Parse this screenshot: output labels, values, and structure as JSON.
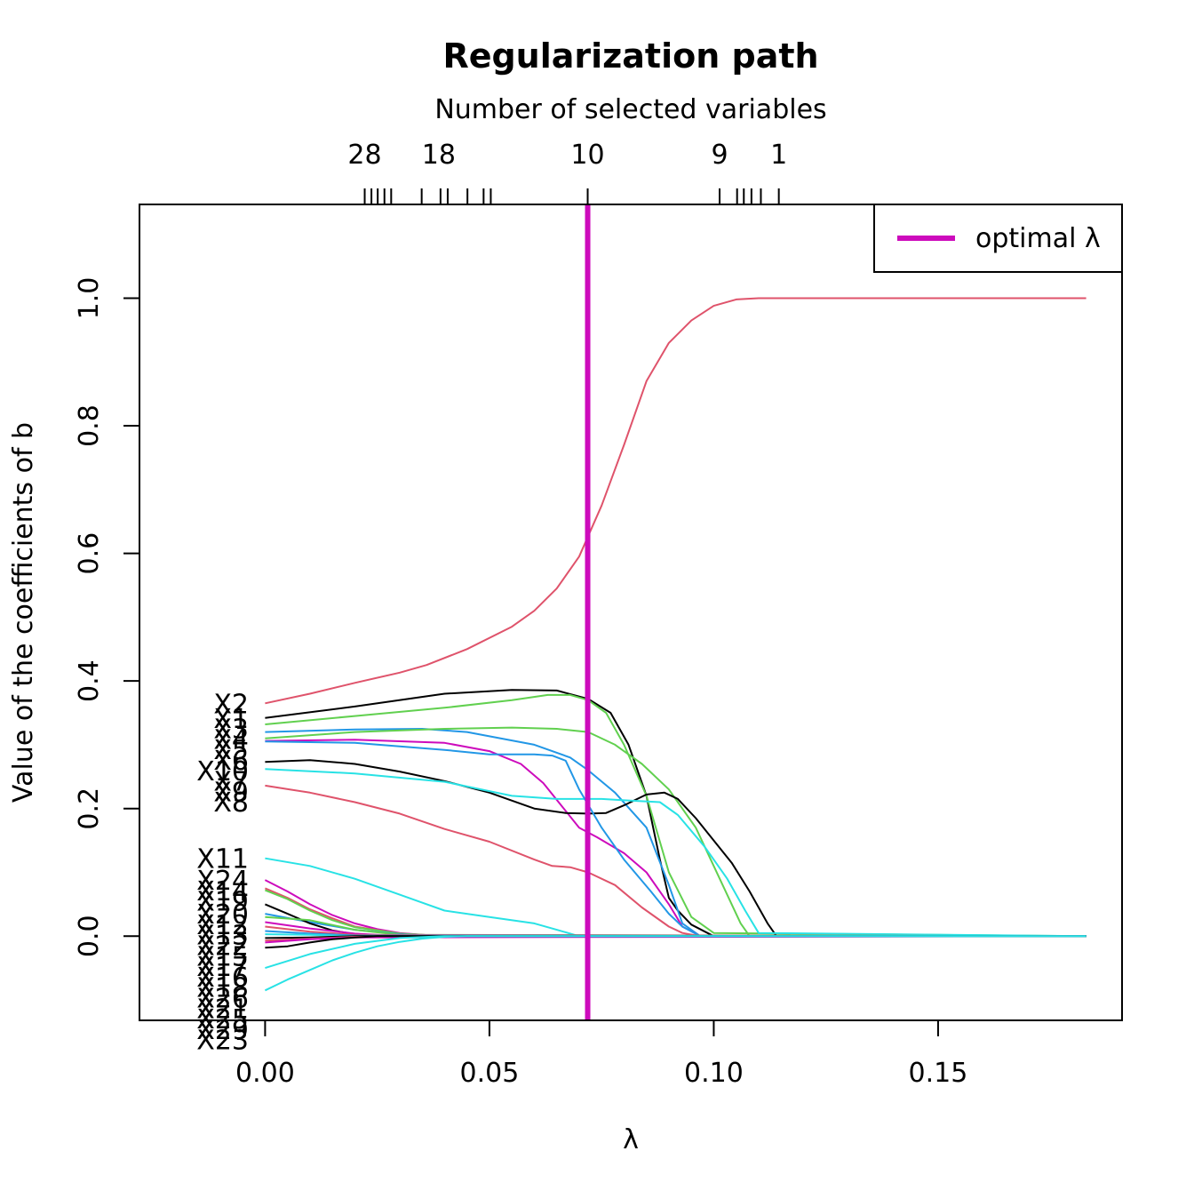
{
  "chart_data": {
    "type": "line",
    "title": "Regularization path",
    "top_axis_label": "Number of selected variables",
    "xlabel": "λ",
    "ylabel": "Value of the coefficients of b",
    "xlim": [
      -0.028,
      0.191
    ],
    "ylim": [
      -0.132,
      1.147
    ],
    "x_ticks": [
      0.0,
      0.05,
      0.1,
      0.15
    ],
    "x_tick_labels": [
      "0.00",
      "0.05",
      "0.10",
      "0.15"
    ],
    "y_ticks": [
      0.0,
      0.2,
      0.4,
      0.6,
      0.8,
      1.0
    ],
    "y_tick_labels": [
      "0.0",
      "0.2",
      "0.4",
      "0.6",
      "0.8",
      "1.0"
    ],
    "top_ticks": [
      0.0222,
      0.0237,
      0.0251,
      0.0266,
      0.0281,
      0.0349,
      0.0391,
      0.0407,
      0.0451,
      0.0487,
      0.0503,
      0.0719,
      0.1013,
      0.1052,
      0.1067,
      0.1084,
      0.1105,
      0.1145
    ],
    "top_tick_labels": [
      {
        "x": 0.0222,
        "label": "28"
      },
      {
        "x": 0.0387,
        "label": "18"
      },
      {
        "x": 0.0719,
        "label": "10"
      },
      {
        "x": 0.1013,
        "label": "9"
      },
      {
        "x": 0.1145,
        "label": "1"
      }
    ],
    "optimal_lambda": 0.0719,
    "optimal_color": "#CD0BBC",
    "legend": {
      "position": "top-right",
      "label": "optimal λ"
    },
    "series": [
      {
        "name": "X2",
        "color": "#DF536B",
        "x": [
          0,
          0.01,
          0.02,
          0.03,
          0.036,
          0.045,
          0.055,
          0.06,
          0.065,
          0.07,
          0.075,
          0.08,
          0.085,
          0.09,
          0.095,
          0.1,
          0.105,
          0.11,
          0.12,
          0.183
        ],
        "y": [
          0.365,
          0.38,
          0.397,
          0.413,
          0.425,
          0.45,
          0.485,
          0.51,
          0.545,
          0.595,
          0.675,
          0.77,
          0.87,
          0.93,
          0.965,
          0.988,
          0.998,
          1.0,
          1.0,
          1.0
        ]
      },
      {
        "name": "X1",
        "color": "#000000",
        "x": [
          0,
          0.02,
          0.04,
          0.055,
          0.065,
          0.072,
          0.077,
          0.081,
          0.085,
          0.088,
          0.09,
          0.092,
          0.095,
          0.1,
          0.183
        ],
        "y": [
          0.342,
          0.36,
          0.38,
          0.386,
          0.385,
          0.372,
          0.35,
          0.3,
          0.22,
          0.12,
          0.06,
          0.04,
          0.018,
          0.0,
          0.0
        ]
      },
      {
        "name": "X3",
        "color": "#61D04F",
        "x": [
          0,
          0.02,
          0.04,
          0.055,
          0.063,
          0.068,
          0.072,
          0.076,
          0.08,
          0.085,
          0.09,
          0.095,
          0.1,
          0.183
        ],
        "y": [
          0.332,
          0.345,
          0.358,
          0.37,
          0.378,
          0.378,
          0.37,
          0.35,
          0.3,
          0.22,
          0.1,
          0.03,
          0.005,
          0.0
        ]
      },
      {
        "name": "X4",
        "color": "#2297E6",
        "x": [
          0,
          0.02,
          0.035,
          0.045,
          0.06,
          0.068,
          0.072,
          0.078,
          0.085,
          0.09,
          0.093,
          0.097,
          0.183
        ],
        "y": [
          0.32,
          0.324,
          0.325,
          0.32,
          0.3,
          0.28,
          0.26,
          0.225,
          0.17,
          0.08,
          0.02,
          0.0,
          0.0
        ]
      },
      {
        "name": "X5",
        "color": "#CD0BBC",
        "x": [
          0,
          0.02,
          0.04,
          0.05,
          0.057,
          0.062,
          0.066,
          0.07,
          0.074,
          0.08,
          0.085,
          0.09,
          0.093,
          0.097,
          0.183
        ],
        "y": [
          0.306,
          0.308,
          0.303,
          0.29,
          0.27,
          0.24,
          0.205,
          0.17,
          0.155,
          0.13,
          0.1,
          0.05,
          0.015,
          0.0,
          0.0
        ]
      },
      {
        "name": "X6",
        "color": "#61D04F",
        "x": [
          0,
          0.02,
          0.04,
          0.055,
          0.065,
          0.072,
          0.078,
          0.084,
          0.09,
          0.096,
          0.1,
          0.104,
          0.106,
          0.108,
          0.183
        ],
        "y": [
          0.31,
          0.32,
          0.325,
          0.327,
          0.325,
          0.32,
          0.3,
          0.27,
          0.23,
          0.17,
          0.11,
          0.05,
          0.02,
          0.0,
          0.0
        ]
      },
      {
        "name": "X7",
        "color": "#000000",
        "x": [
          0,
          0.01,
          0.02,
          0.03,
          0.04,
          0.05,
          0.06,
          0.067,
          0.072,
          0.076,
          0.08,
          0.085,
          0.089,
          0.092,
          0.096,
          0.1,
          0.104,
          0.108,
          0.112,
          0.114,
          0.183
        ],
        "y": [
          0.273,
          0.276,
          0.27,
          0.258,
          0.243,
          0.225,
          0.2,
          0.193,
          0.192,
          0.193,
          0.205,
          0.222,
          0.225,
          0.215,
          0.185,
          0.15,
          0.115,
          0.07,
          0.02,
          0.0,
          0.0
        ]
      },
      {
        "name": "X8",
        "color": "#28E2E5",
        "x": [
          0,
          0.02,
          0.04,
          0.055,
          0.065,
          0.07,
          0.075,
          0.08,
          0.088,
          0.092,
          0.098,
          0.103,
          0.107,
          0.11,
          0.183
        ],
        "y": [
          0.262,
          0.255,
          0.242,
          0.22,
          0.215,
          0.215,
          0.215,
          0.213,
          0.21,
          0.19,
          0.14,
          0.09,
          0.04,
          0.005,
          0.0
        ]
      },
      {
        "name": "X9",
        "color": "#DF536B",
        "x": [
          0,
          0.01,
          0.02,
          0.03,
          0.04,
          0.05,
          0.06,
          0.064,
          0.068,
          0.072,
          0.078,
          0.084,
          0.09,
          0.093,
          0.097,
          0.183
        ],
        "y": [
          0.236,
          0.225,
          0.21,
          0.192,
          0.168,
          0.148,
          0.12,
          0.11,
          0.108,
          0.1,
          0.08,
          0.045,
          0.015,
          0.005,
          0.0,
          0.0
        ]
      },
      {
        "name": "X10",
        "color": "#2297E6",
        "x": [
          0,
          0.02,
          0.04,
          0.05,
          0.06,
          0.064,
          0.067,
          0.07,
          0.075,
          0.08,
          0.086,
          0.09,
          0.093,
          0.097,
          0.183
        ],
        "y": [
          0.305,
          0.303,
          0.292,
          0.285,
          0.285,
          0.283,
          0.275,
          0.23,
          0.17,
          0.12,
          0.07,
          0.035,
          0.015,
          0.0,
          0.0
        ]
      },
      {
        "name": "X11",
        "color": "#28E2E5",
        "x": [
          0,
          0.01,
          0.02,
          0.03,
          0.04,
          0.05,
          0.06,
          0.065,
          0.07,
          0.183
        ],
        "y": [
          0.122,
          0.11,
          0.09,
          0.065,
          0.04,
          0.03,
          0.02,
          0.01,
          0.0,
          0.0
        ]
      },
      {
        "name": "X24",
        "color": "#CD0BBC",
        "x": [
          0,
          0.005,
          0.01,
          0.015,
          0.02,
          0.025,
          0.03,
          0.035,
          0.04,
          0.045,
          0.183
        ],
        "y": [
          0.088,
          0.07,
          0.05,
          0.033,
          0.02,
          0.011,
          0.005,
          0.002,
          0.0,
          0.0,
          0.0
        ]
      },
      {
        "name": "X14",
        "color": "#DF536B",
        "x": [
          0,
          0.005,
          0.01,
          0.015,
          0.02,
          0.03,
          0.04,
          0.183
        ],
        "y": [
          0.075,
          0.06,
          0.042,
          0.028,
          0.015,
          0.004,
          0.0,
          0.0
        ]
      },
      {
        "name": "X19",
        "color": "#61D04F",
        "x": [
          0,
          0.005,
          0.01,
          0.015,
          0.02,
          0.03,
          0.04,
          0.183
        ],
        "y": [
          0.072,
          0.058,
          0.04,
          0.025,
          0.014,
          0.004,
          0.0,
          0.0
        ]
      },
      {
        "name": "X20",
        "color": "#2297E6",
        "x": [
          0,
          0.01,
          0.02,
          0.03,
          0.04,
          0.183
        ],
        "y": [
          0.035,
          0.022,
          0.01,
          0.003,
          0.0,
          0.0
        ]
      },
      {
        "name": "X12",
        "color": "#000000",
        "x": [
          0,
          0.005,
          0.01,
          0.015,
          0.02,
          0.03,
          0.183
        ],
        "y": [
          0.05,
          0.035,
          0.02,
          0.009,
          0.003,
          0.0,
          0.0
        ]
      },
      {
        "name": "X13",
        "color": "#61D04F",
        "x": [
          0,
          0.01,
          0.02,
          0.03,
          0.183
        ],
        "y": [
          0.03,
          0.025,
          0.01,
          0.002,
          0.0
        ]
      },
      {
        "name": "X22",
        "color": "#CD0BBC",
        "x": [
          0,
          0.01,
          0.02,
          0.03,
          0.183
        ],
        "y": [
          0.022,
          0.012,
          0.004,
          0.0,
          0.0
        ]
      },
      {
        "name": "X15",
        "color": "#DF536B",
        "x": [
          0,
          0.01,
          0.02,
          0.183
        ],
        "y": [
          0.015,
          0.007,
          0.002,
          0.0
        ]
      },
      {
        "name": "X17",
        "color": "#2297E6",
        "x": [
          0,
          0.01,
          0.02,
          0.183
        ],
        "y": [
          0.008,
          0.004,
          0.001,
          0.0
        ]
      },
      {
        "name": "X16",
        "color": "#28E2E5",
        "x": [
          0,
          0.01,
          0.02,
          0.183
        ],
        "y": [
          0.003,
          0.002,
          0.0,
          0.0
        ]
      },
      {
        "name": "X18",
        "color": "#000000",
        "x": [
          0,
          0.01,
          0.02,
          0.183
        ],
        "y": [
          -0.003,
          -0.002,
          0.0,
          0.0
        ]
      },
      {
        "name": "X26",
        "color": "#DF536B",
        "x": [
          0,
          0.01,
          0.02,
          0.183
        ],
        "y": [
          -0.007,
          -0.004,
          -0.001,
          0.0
        ]
      },
      {
        "name": "X21",
        "color": "#CD0BBC",
        "x": [
          0,
          0.01,
          0.02,
          0.183
        ],
        "y": [
          -0.01,
          -0.005,
          -0.002,
          0.0
        ]
      },
      {
        "name": "X25",
        "color": "#000000",
        "x": [
          0,
          0.005,
          0.01,
          0.015,
          0.02,
          0.025,
          0.183
        ],
        "y": [
          -0.018,
          -0.016,
          -0.01,
          -0.005,
          -0.002,
          0.0,
          0.0
        ]
      },
      {
        "name": "X29",
        "color": "#28E2E5",
        "x": [
          0,
          0.01,
          0.02,
          0.03,
          0.04,
          0.183
        ],
        "y": [
          -0.05,
          -0.028,
          -0.012,
          -0.003,
          0.0,
          0.0
        ]
      },
      {
        "name": "X23",
        "color": "#28E2E5",
        "x": [
          0,
          0.005,
          0.01,
          0.015,
          0.02,
          0.025,
          0.03,
          0.035,
          0.04,
          0.045,
          0.183
        ],
        "y": [
          -0.085,
          -0.068,
          -0.053,
          -0.038,
          -0.026,
          -0.016,
          -0.009,
          -0.004,
          -0.001,
          0.0,
          0.0
        ]
      }
    ],
    "label_order": [
      "X2",
      "X1",
      "X3",
      "X4",
      "X5",
      "X6",
      "X10",
      "X7",
      "X9",
      "X8",
      "X11",
      "X24",
      "X14",
      "X19",
      "X20",
      "X12",
      "X13",
      "X22",
      "X15",
      "X17",
      "X16",
      "X18",
      "X26",
      "X21",
      "X25",
      "X29",
      "X23"
    ]
  }
}
